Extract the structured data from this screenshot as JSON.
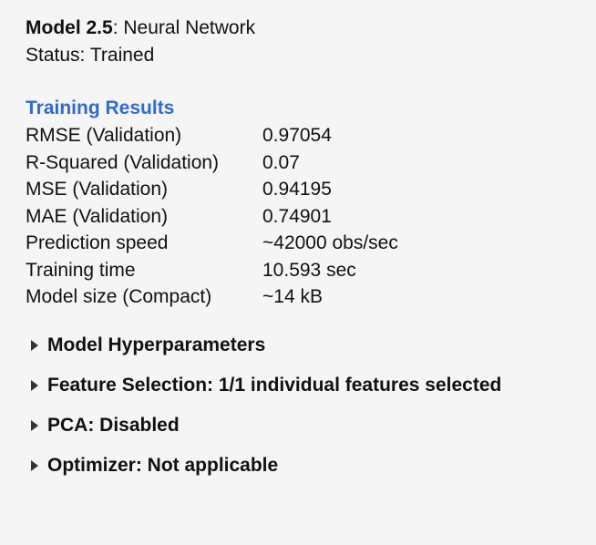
{
  "model": {
    "name": "Model 2.5",
    "type": "Neural Network",
    "status_label": "Status:",
    "status_value": "Trained"
  },
  "training_results": {
    "heading": "Training Results",
    "rows": [
      {
        "label": "RMSE (Validation)",
        "value": "0.97054"
      },
      {
        "label": "R-Squared (Validation)",
        "value": "0.07"
      },
      {
        "label": "MSE (Validation)",
        "value": "0.94195"
      },
      {
        "label": "MAE (Validation)",
        "value": "0.74901"
      },
      {
        "label": "Prediction speed",
        "value": "~42000 obs/sec"
      },
      {
        "label": "Training time",
        "value": "10.593 sec"
      },
      {
        "label": "Model size (Compact)",
        "value": "~14 kB"
      }
    ]
  },
  "sections": [
    {
      "label": "Model Hyperparameters",
      "expanded": false
    },
    {
      "label": "Feature Selection: 1/1 individual features selected",
      "expanded": false
    },
    {
      "label": "PCA: Disabled",
      "expanded": false
    },
    {
      "label": "Optimizer: Not applicable",
      "expanded": false
    }
  ],
  "colors": {
    "heading_accent": "#2f6bd1",
    "background": "#f5f5f5"
  }
}
